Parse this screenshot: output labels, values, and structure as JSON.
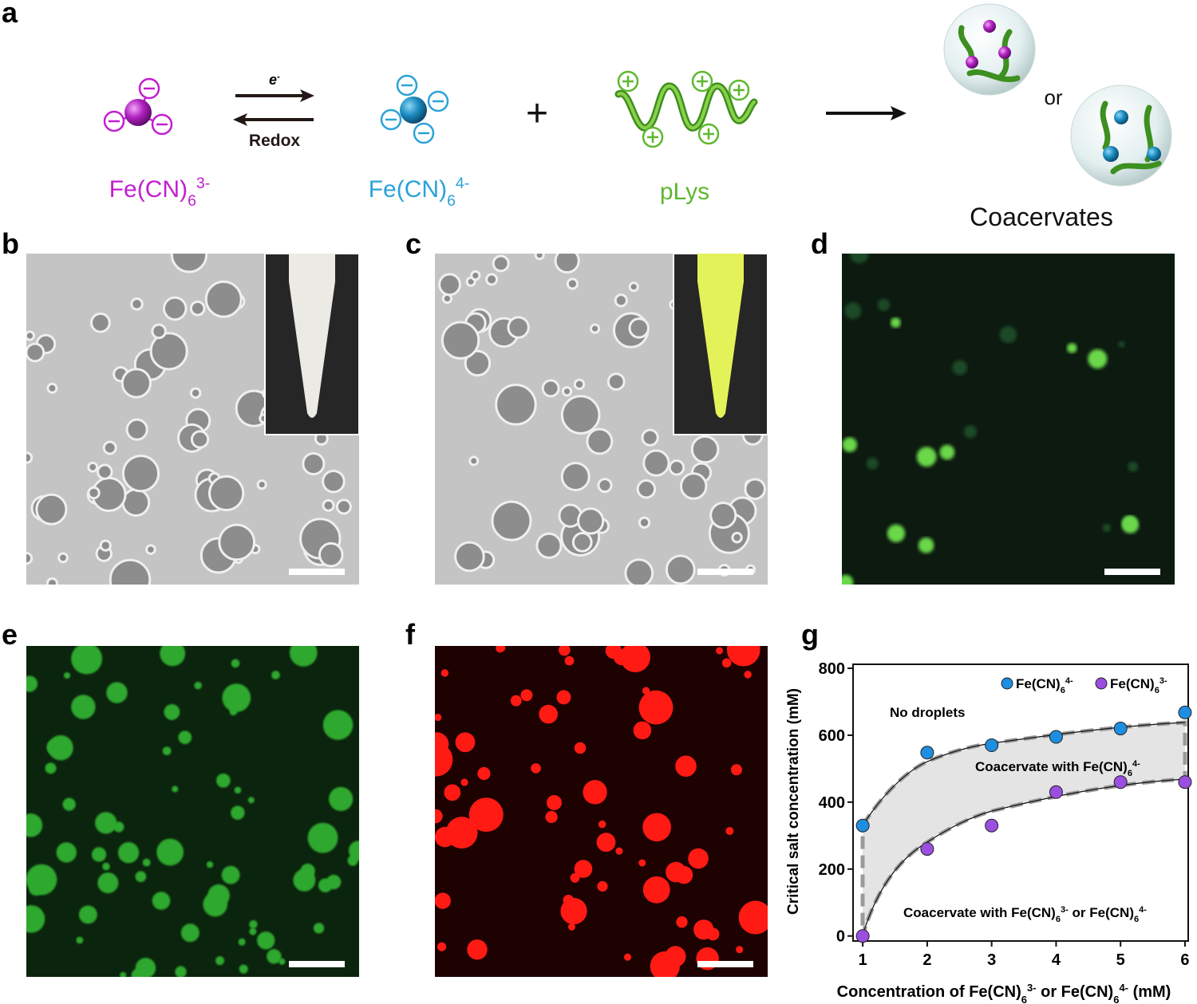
{
  "panel_labels": [
    "a",
    "b",
    "c",
    "d",
    "e",
    "f",
    "g"
  ],
  "scheme": {
    "electron": [
      "e",
      {
        "sup": "-"
      }
    ],
    "redox": "Redox",
    "plus": "+",
    "ferricyanide": [
      "Fe(CN)",
      {
        "sub": "6"
      },
      {
        "sup": "3-"
      }
    ],
    "ferrocyanide": [
      "Fe(CN)",
      {
        "sub": "6"
      },
      {
        "sup": "4-"
      }
    ],
    "polylysine": "pLys",
    "or": "or",
    "coacervates": "Coacervates"
  },
  "chart_data": {
    "type": "scatter",
    "x_label": [
      "Concentration of Fe(CN)",
      {
        "sub": "6"
      },
      {
        "sup": "3-"
      },
      " or Fe(CN)",
      {
        "sub": "6"
      },
      {
        "sup": "4-"
      },
      " (mM)"
    ],
    "y_label": "Critical salt concentration (mM)",
    "x": [
      1,
      2,
      3,
      4,
      5,
      6
    ],
    "series": [
      {
        "name": [
          "Fe(CN)",
          {
            "sub": "6"
          },
          {
            "sup": "4-"
          }
        ],
        "color": "#1e8ee0",
        "values": [
          330,
          548,
          570,
          595,
          620,
          668
        ]
      },
      {
        "name": [
          "Fe(CN)",
          {
            "sub": "6"
          },
          {
            "sup": "3-"
          }
        ],
        "color": "#9b4fe0",
        "values": [
          0,
          260,
          330,
          430,
          460,
          460
        ]
      }
    ],
    "xlim": [
      0.85,
      6.05
    ],
    "ylim": [
      -15,
      812
    ],
    "xticks": [
      1,
      2,
      3,
      4,
      5,
      6
    ],
    "yticks": [
      0,
      200,
      400,
      600,
      800
    ],
    "annotations": [
      [
        "No droplets"
      ],
      [
        "Coacervate with Fe(CN)",
        {
          "sub": "6"
        },
        {
          "sup": "4-"
        }
      ],
      [
        "Coacervate with Fe(CN)",
        {
          "sub": "6"
        },
        {
          "sup": "3-"
        },
        " or Fe(CN)",
        {
          "sub": "6"
        },
        {
          "sup": "4-"
        }
      ]
    ],
    "legend": "upper right"
  }
}
